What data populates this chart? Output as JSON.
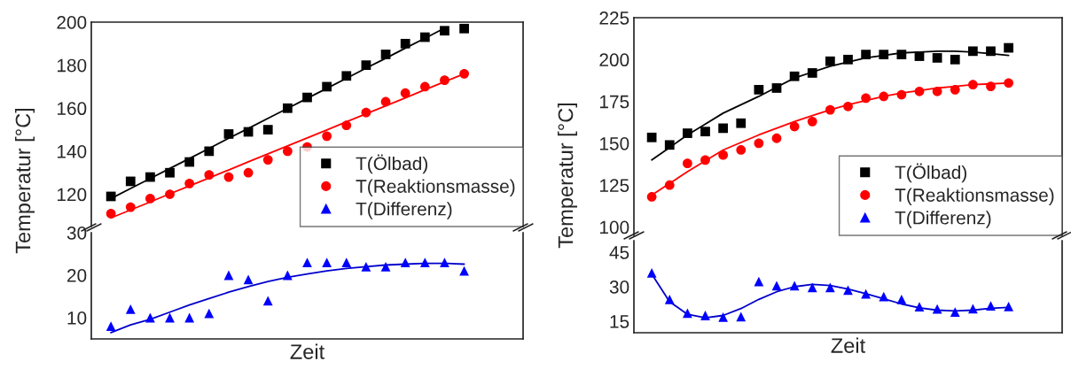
{
  "chart_data": [
    {
      "type": "scatter",
      "ylabel": "Temperatur [°C]",
      "categories": [
        null,
        null,
        null,
        null,
        null,
        null,
        null,
        null,
        null,
        null,
        null,
        null,
        null,
        null,
        null,
        null,
        null,
        null,
        null
      ],
      "ylim": [
        105,
        200
      ],
      "yticks": [
        120,
        140,
        160,
        180,
        200
      ],
      "legend": "bottom right",
      "tick_labels": "y",
      "series": [
        {
          "name": "T(Ölbad)",
          "color": "#000000",
          "marker": "square",
          "values": [
            119,
            126,
            128,
            130,
            135,
            140,
            148,
            149,
            150,
            160,
            165,
            170,
            175,
            180,
            185,
            190,
            193,
            196,
            197
          ]
        },
        {
          "name": "T(Reaktionsmasse)",
          "color": "#ff0000",
          "marker": "circle",
          "values": [
            111,
            114,
            118,
            120,
            125,
            129,
            128,
            130,
            136,
            140,
            142,
            147,
            152,
            158,
            163,
            167,
            170,
            173,
            176
          ]
        },
        {
          "type": "line",
          "color": "#000000",
          "values": [
            118,
            122.7,
            127.3,
            132,
            136.6,
            141.3,
            146,
            150.6,
            155.3,
            159.9,
            164.6,
            169.2,
            173.9,
            178.6,
            183.2,
            187.9,
            192.5,
            197.2,
            null
          ]
        },
        {
          "type": "line",
          "color": "#ff0000",
          "values": [
            109,
            112.7,
            116.4,
            120.2,
            123.9,
            127.6,
            131.3,
            135.1,
            138.8,
            142.5,
            146.2,
            149.9,
            153.7,
            157.4,
            161.1,
            164.8,
            168.6,
            172.3,
            176
          ]
        }
      ]
    },
    {
      "type": "scatter",
      "xlabel": "Zeit",
      "categories": [
        null,
        null,
        null,
        null,
        null,
        null,
        null,
        null,
        null,
        null,
        null,
        null,
        null,
        null,
        null,
        null,
        null,
        null,
        null
      ],
      "ylim": [
        5,
        30
      ],
      "yticks": [
        10,
        20,
        30
      ],
      "tick_labels": "y",
      "series": [
        {
          "name": "T(Differenz)",
          "color": "#0000ff",
          "marker": "triangle",
          "values": [
            8,
            12,
            10,
            10,
            10,
            11,
            20,
            19,
            14,
            20,
            23,
            23,
            23,
            22,
            22,
            23,
            23,
            23,
            21
          ]
        },
        {
          "type": "line",
          "color": "#0000cc",
          "values": [
            6.5,
            8.3,
            9.6,
            11.3,
            13,
            14.5,
            16,
            17.3,
            18.5,
            19.5,
            20.3,
            21,
            21.6,
            22,
            22.4,
            22.6,
            22.8,
            22.8,
            22.6
          ]
        }
      ]
    },
    {
      "type": "scatter",
      "ylabel": "Temperatur [°C]",
      "categories": [
        null,
        null,
        null,
        null,
        null,
        null,
        null,
        null,
        null,
        null,
        null,
        null,
        null,
        null,
        null,
        null,
        null,
        null,
        null,
        null,
        null
      ],
      "ylim": [
        95,
        225
      ],
      "yticks": [
        100,
        125,
        150,
        175,
        200,
        225
      ],
      "legend": "bottom right",
      "tick_labels": "y",
      "series": [
        {
          "name": "T(Ölbad)",
          "color": "#000000",
          "marker": "square",
          "values": [
            153.5,
            149,
            156,
            157,
            159,
            162,
            182,
            183,
            190,
            192,
            199,
            200,
            203,
            203,
            203,
            202,
            201,
            200,
            205,
            205,
            207
          ]
        },
        {
          "name": "T(Reaktionsmasse)",
          "color": "#ff0000",
          "marker": "circle",
          "values": [
            118,
            125,
            138,
            140,
            143,
            146,
            150,
            153,
            160,
            163,
            170,
            172,
            177,
            178,
            179,
            181,
            181,
            182,
            185,
            184,
            186
          ]
        },
        {
          "type": "line",
          "color": "#000000",
          "values": [
            140,
            147.5,
            155,
            161.5,
            168,
            173,
            178,
            183.5,
            189,
            192.5,
            196,
            198.5,
            201,
            202.5,
            204,
            204.5,
            205,
            205,
            204.5,
            203.5,
            202.5
          ]
        },
        {
          "type": "line",
          "color": "#ff0000",
          "values": [
            119,
            126,
            133,
            139.5,
            146,
            150.5,
            155,
            159,
            163,
            166.5,
            170,
            173,
            175.5,
            178,
            180,
            181.5,
            183,
            184,
            185,
            185.5,
            186
          ]
        }
      ]
    },
    {
      "type": "scatter",
      "xlabel": "Zeit",
      "categories": [
        null,
        null,
        null,
        null,
        null,
        null,
        null,
        null,
        null,
        null,
        null,
        null,
        null,
        null,
        null,
        null,
        null,
        null,
        null,
        null,
        null
      ],
      "ylim": [
        10,
        50
      ],
      "yticks": [
        15,
        30,
        45
      ],
      "tick_labels": "y",
      "series": [
        {
          "name": "T(Differenz)",
          "color": "#0000ff",
          "marker": "triangle",
          "values": [
            36,
            24.5,
            18.5,
            17.5,
            16.8,
            17,
            32.3,
            30.4,
            30.4,
            29.7,
            29.7,
            28.5,
            26.9,
            25.7,
            24.5,
            21.3,
            20.3,
            19,
            20.4,
            21.7,
            21.4
          ]
        },
        {
          "type": "line",
          "color": "#0000cc",
          "values": [
            35.5,
            23.5,
            18,
            16.5,
            17.5,
            20.5,
            24.5,
            27.8,
            30,
            31,
            30.5,
            29,
            27,
            24.8,
            22.5,
            20.8,
            19.8,
            19.5,
            19.8,
            20.6,
            21
          ]
        }
      ]
    }
  ]
}
